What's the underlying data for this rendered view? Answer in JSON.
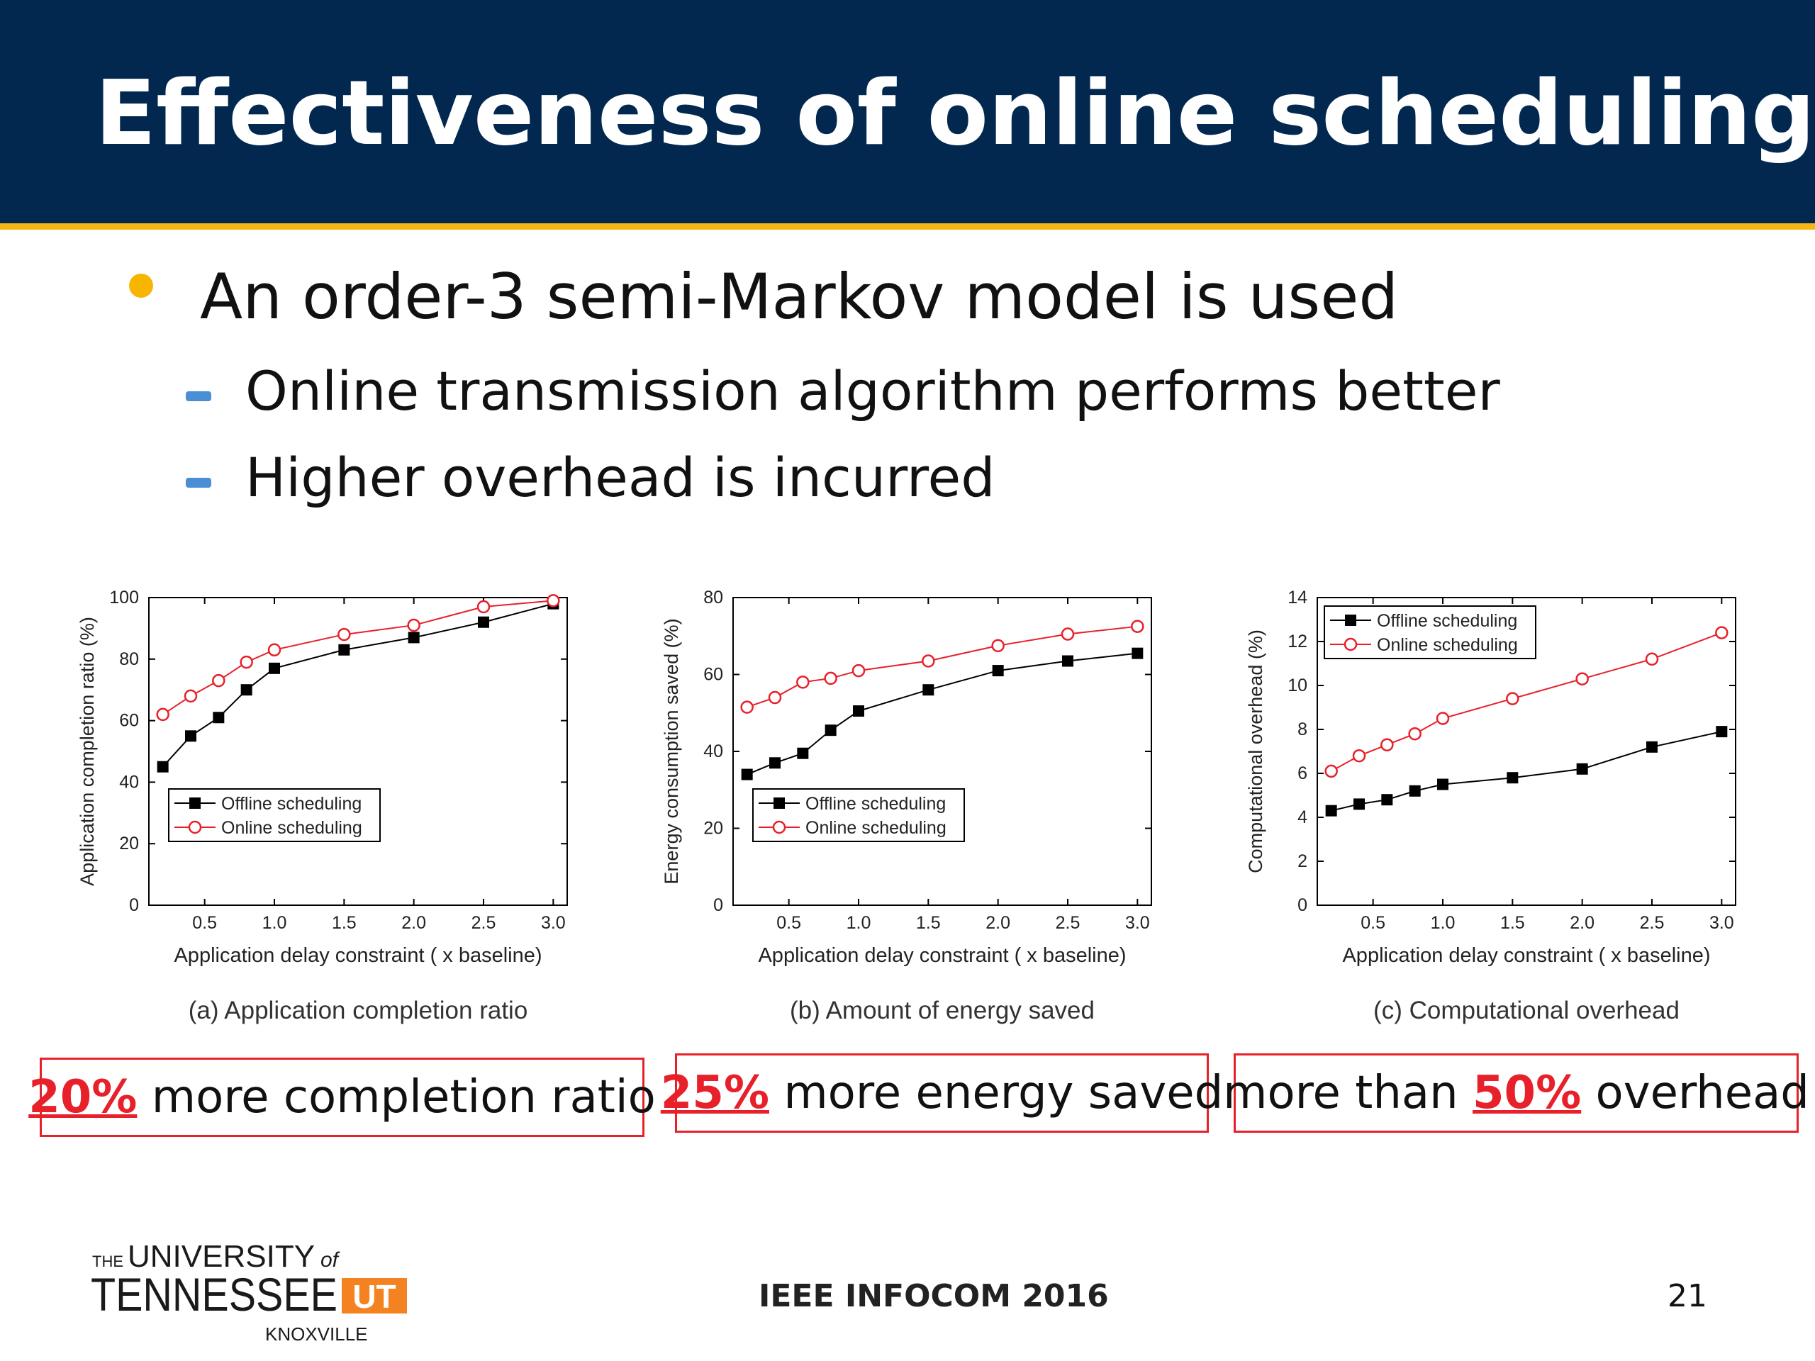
{
  "slide": {
    "title": "Effectiveness of online scheduling",
    "bullet": "An order-3 semi-Markov model is used",
    "subbullets": [
      "Online transmission algorithm performs better",
      "Higher overhead is incurred"
    ],
    "colors": {
      "header": "#032850",
      "accent_line": "#f5b715",
      "bullet": "#f7b500",
      "dash": "#4a8fd6",
      "highlight": "#e8202a",
      "online": "#e8202a",
      "offline": "#000000"
    },
    "callouts": [
      {
        "pre": "",
        "highlight": "20%",
        "post": " more completion ratio"
      },
      {
        "pre": "",
        "highlight": "25%",
        "post": " more energy saved"
      },
      {
        "pre": "more than ",
        "highlight": "50%",
        "post": " overhead"
      }
    ],
    "footer": "IEEE INFOCOM 2016",
    "page_number": "21",
    "logo": {
      "line1_the": "THE",
      "line1_univ": "UNIVERSITY",
      "line1_of": "of",
      "line2": "TENNESSEE",
      "line3": "KNOXVILLE",
      "mark": "UT"
    }
  },
  "chart_data": [
    {
      "type": "line",
      "caption": "(a) Application completion ratio",
      "xlabel": "Application delay constraint ( x baseline)",
      "ylabel": "Application completion ratio (%)",
      "xlim": [
        0.1,
        3.1
      ],
      "ylim": [
        0,
        100
      ],
      "xticks": [
        "0.5",
        "1.0",
        "1.5",
        "2.0",
        "2.5",
        "3.0"
      ],
      "yticks": [
        "0",
        "20",
        "40",
        "60",
        "80",
        "100"
      ],
      "legend_position": "bottom-left",
      "x": [
        0.2,
        0.4,
        0.6,
        0.8,
        1.0,
        1.5,
        2.0,
        2.5,
        3.0
      ],
      "series": [
        {
          "name": "Offline scheduling",
          "values": [
            45,
            55,
            61,
            70,
            77,
            83,
            87,
            92,
            98
          ]
        },
        {
          "name": "Online scheduling",
          "values": [
            62,
            68,
            73,
            79,
            83,
            88,
            91,
            97,
            99
          ]
        }
      ]
    },
    {
      "type": "line",
      "caption": "(b) Amount of energy saved",
      "xlabel": "Application delay constraint ( x baseline)",
      "ylabel": "Energy consumption saved (%)",
      "xlim": [
        0.1,
        3.1
      ],
      "ylim": [
        0,
        80
      ],
      "xticks": [
        "0.5",
        "1.0",
        "1.5",
        "2.0",
        "2.5",
        "3.0"
      ],
      "yticks": [
        "0",
        "20",
        "40",
        "60",
        "80"
      ],
      "legend_position": "bottom-left",
      "x": [
        0.2,
        0.4,
        0.6,
        0.8,
        1.0,
        1.5,
        2.0,
        2.5,
        3.0
      ],
      "series": [
        {
          "name": "Offline scheduling",
          "values": [
            34,
            37,
            39.5,
            45.5,
            50.5,
            56,
            61,
            63.5,
            65.5
          ]
        },
        {
          "name": "Online scheduling",
          "values": [
            51.5,
            54,
            58,
            59,
            61,
            63.5,
            67.5,
            70.5,
            72.5
          ]
        }
      ]
    },
    {
      "type": "line",
      "caption": "(c) Computational overhead",
      "xlabel": "Application delay constraint ( x baseline)",
      "ylabel": "Computational overhead (%)",
      "xlim": [
        0.1,
        3.1
      ],
      "ylim": [
        0,
        14
      ],
      "xticks": [
        "0.5",
        "1.0",
        "1.5",
        "2.0",
        "2.5",
        "3.0"
      ],
      "yticks": [
        "0",
        "2",
        "4",
        "6",
        "8",
        "10",
        "12",
        "14"
      ],
      "legend_position": "top-left",
      "x": [
        0.2,
        0.4,
        0.6,
        0.8,
        1.0,
        1.5,
        2.0,
        2.5,
        3.0
      ],
      "series": [
        {
          "name": "Offline scheduling",
          "values": [
            4.3,
            4.6,
            4.8,
            5.2,
            5.5,
            5.8,
            6.2,
            7.2,
            7.9
          ]
        },
        {
          "name": "Online scheduling",
          "values": [
            6.1,
            6.8,
            7.3,
            7.8,
            8.5,
            9.4,
            10.3,
            11.2,
            12.4
          ]
        }
      ]
    }
  ]
}
